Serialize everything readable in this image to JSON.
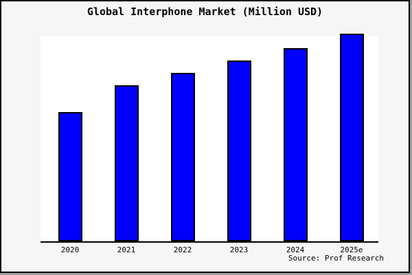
{
  "title": "Global Interphone Market (Million USD)",
  "source_note": "Source: Prof Research",
  "colors": {
    "figure_bg": "#f6f6f6",
    "plot_bg": "#ffffff",
    "bar_fill": "#0000ff",
    "bar_outline": "#000000",
    "axis_line": "#000000",
    "frame_border": "#000000",
    "frame_shadow": "#9e9e9e",
    "text": "#000000"
  },
  "chart_data": {
    "type": "bar",
    "title": "Global Interphone Market (Million USD)",
    "categories": [
      "2020",
      "2021",
      "2022",
      "2023",
      "2024",
      "2025e"
    ],
    "values": [
      63,
      76,
      82,
      88,
      94,
      101
    ],
    "value_scale": "relative height, % of plot height (y-axis has no ticks, labels or gridlines)",
    "xlabel": "",
    "ylabel": "",
    "ylim": [
      0,
      100
    ],
    "grid": false,
    "legend": false,
    "y_axis_line": false,
    "annotations": [
      "Source: Prof Research"
    ]
  }
}
